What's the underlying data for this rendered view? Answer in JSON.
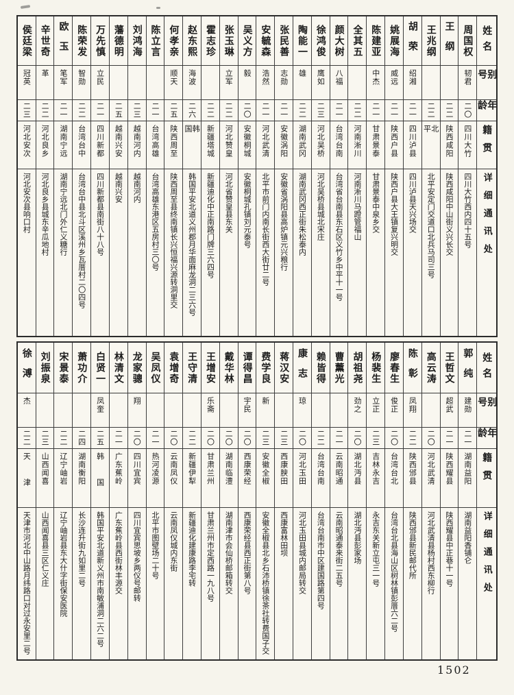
{
  "page_number": "1502",
  "headers": {
    "name": "姓名",
    "alias": "别号",
    "age": "年龄",
    "origin": "籍贯",
    "address": "详细通讯处"
  },
  "tables": [
    {
      "entries": [
        {
          "name": "周国权",
          "alias": "韧君",
          "age": "二〇",
          "origin": "四川大竹",
          "address": "四川大竹西内四十五号"
        },
        {
          "name": "王纲",
          "alias": "",
          "age": "二二",
          "origin": "陕西咸阳",
          "address": "陕西咸阳中山街义兴长交"
        },
        {
          "name": "王兆纲",
          "alias": "",
          "age": "二二",
          "origin": "北平",
          "address": "北平安定门交道口北兵马司三号"
        },
        {
          "name": "胡荣",
          "alias": "绍湘",
          "age": "二一",
          "origin": "四川泸县",
          "address": "四川泸县天兴场交"
        },
        {
          "name": "姚展海",
          "alias": "威远",
          "age": "二一",
          "origin": "陕西户县",
          "address": "陕西户县大王镇复兴明交"
        },
        {
          "name": "陈建亚",
          "alias": "中杰",
          "age": "二一",
          "origin": "甘肃景泰",
          "address": "甘肃景泰中泉乡交"
        },
        {
          "name": "全其五",
          "alias": "",
          "age": "二二",
          "origin": "河南淅川",
          "address": "河南淅川马蹬管福山"
        },
        {
          "name": "颜大树",
          "alias": "八福",
          "age": "二一",
          "origin": "台湾台南",
          "address": "台湾省台南县东石区义竹乡中平十一号"
        },
        {
          "name": "徐鸿俊",
          "alias": "鹰如",
          "age": "二三",
          "origin": "河北吴桥",
          "address": "河北吴桥县城北宋庄"
        },
        {
          "name": "陶能一",
          "alias": "雄",
          "age": "二二",
          "origin": "湖南武冈",
          "address": "湖南武冈西正街朱松泰内"
        },
        {
          "name": "张民善",
          "alias": "志勋",
          "age": "二一",
          "origin": "安徽涡阳",
          "address": "安徽省涡阳县高炉镇元兴粮行"
        },
        {
          "name": "安毓森",
          "alias": "浩然",
          "age": "二一",
          "origin": "河北武清",
          "address": "北平市前门内南长街西大街廿二号"
        },
        {
          "name": "吴义方",
          "alias": "毅",
          "age": "二〇",
          "origin": "安徽桐城",
          "address": "安徽桐城孔镇刘元泰号"
        },
        {
          "name": "张玉琳",
          "alias": "立军",
          "age": "二二",
          "origin": "河北赞皇",
          "address": "河北省赞皇县东关"
        },
        {
          "name": "霍志珍",
          "alias": "",
          "age": "二二",
          "origin": "新疆塔城",
          "address": "新疆迪化中正南路门牌三六四号"
        },
        {
          "name": "赵东熙",
          "alias": "海波",
          "age": "二六",
          "origin": "韩国",
          "address": "韩国平安北道义州郡月华面麻龙洞二三六号"
        },
        {
          "name": "何孝亲",
          "alias": "顺天",
          "age": "二五",
          "origin": "陕西周至",
          "address": "陕西周至县终南镇长兴恒福兴源转洞里交"
        },
        {
          "name": "陈立言",
          "alias": "",
          "age": "二一",
          "origin": "台湾高雄",
          "address": "台湾高雄东港区五房村三〇号"
        },
        {
          "name": "刘鸿海",
          "alias": "",
          "age": "二三",
          "origin": "越南河内",
          "address": "越南河内"
        },
        {
          "name": "藩德明",
          "alias": "",
          "age": "二五",
          "origin": "越南兴安",
          "address": "越南兴安"
        },
        {
          "name": "万先慎",
          "alias": "立民",
          "age": "二一",
          "origin": "四川新都",
          "address": "四川新都县南街八十八号"
        },
        {
          "name": "陈荣发",
          "alias": "智勋",
          "age": "二二",
          "origin": "台湾台中",
          "address": "台湾台中县北斗区溪州乡瓦厝村二〇四号"
        },
        {
          "name": "欧玉",
          "alias": "笔军",
          "age": "二一",
          "origin": "湖南宁远",
          "address": "湖南宁远北门外仁义糖行"
        },
        {
          "name": "辛世奇",
          "alias": "革",
          "age": "二二",
          "origin": "河北良乡",
          "address": "河北良乡县城东辛瓜地村"
        },
        {
          "name": "侯廷梁",
          "alias": "冠英",
          "age": "二三",
          "origin": "河北安次",
          "address": "河北安次县响口村"
        }
      ]
    },
    {
      "entries": [
        {
          "name": "郭纯",
          "alias": "建勋",
          "age": "二一",
          "origin": "湖南益阳",
          "address": "湖南益阳香铺仑"
        },
        {
          "name": "王哲文",
          "alias": "超武",
          "age": "二一",
          "origin": "陕西耀县",
          "address": "陕西耀县中正巷十一号"
        },
        {
          "name": "高云涛",
          "alias": "",
          "age": "二〇",
          "origin": "河北武清",
          "address": "河北武清县杨村西东柳行"
        },
        {
          "name": "陈彰",
          "alias": "凤翔",
          "age": "二二",
          "origin": "陕西邠县",
          "address": "陕西邠县新民邮代所"
        },
        {
          "name": "廖春生",
          "alias": "俊正",
          "age": "二〇",
          "origin": "台湾台北",
          "address": "台湾台北县海山区树林镇彭厝六二号"
        },
        {
          "name": "杨裴生",
          "alias": "立正",
          "age": "二三",
          "origin": "吉林永吉",
          "address": "永吉东关新立屯三一号"
        },
        {
          "name": "胡祖尧",
          "alias": "劲之",
          "age": "二〇",
          "origin": "湖北沔县",
          "address": "湖北沔县彭家场"
        },
        {
          "name": "曹薰光",
          "alias": "",
          "age": "二一",
          "origin": "云南昭通",
          "address": "云南昭通泰来街二五号"
        },
        {
          "name": "赖皆得",
          "alias": "",
          "age": "二二",
          "origin": "台湾台南",
          "address": "台湾台南市中区建国路第四号"
        },
        {
          "name": "康志",
          "alias": "琼",
          "age": "二〇",
          "origin": "河北玉田",
          "address": "河北玉田县城内邮局转交"
        },
        {
          "name": "蒋汉安",
          "alias": "",
          "age": "二三",
          "origin": "西康腴田",
          "address": "西康富林田坝"
        },
        {
          "name": "费学良",
          "alias": "新",
          "age": "二三",
          "origin": "安徽全椒",
          "address": "安徽全椒县北乡石沛桥镇徐茶社转费国子交"
        },
        {
          "name": "谭得昌",
          "alias": "宇民",
          "age": "二〇",
          "origin": "西康荣经",
          "address": "西康荣经县西正街第八号"
        },
        {
          "name": "戴华林",
          "alias": "",
          "age": "二〇",
          "origin": "湖南临澧",
          "address": "湖南津市会仙桥邮箱转交"
        },
        {
          "name": "王增安",
          "alias": "乐斋",
          "age": "二〇",
          "origin": "甘肃兰州",
          "address": "甘肃兰州市定西路一九八号"
        },
        {
          "name": "王守清",
          "alias": "",
          "age": "二二",
          "origin": "新疆伊犁",
          "address": "新疆迪化建康路李宅转"
        },
        {
          "name": "袁增奇",
          "alias": "",
          "age": "二〇",
          "origin": "云南凤仪",
          "address": "云南凤仪城内东街"
        },
        {
          "name": "吴凤仪",
          "alias": "",
          "age": "二一",
          "origin": "热河凌源",
          "address": "北平市图壁场二十号"
        },
        {
          "name": "龙家骢",
          "alias": "翔",
          "age": "二〇",
          "origin": "四川宜宾",
          "address": "四川宜宾思坡乡两仪号邮转"
        },
        {
          "name": "林清文",
          "alias": "",
          "age": "二一",
          "origin": "广东蕉岭",
          "address": "广东蕉岭县西街林丰源交"
        },
        {
          "name": "白贤一",
          "alias": "凤奎",
          "age": "二五",
          "origin": "韩国",
          "address": "韩国平安北道新义州市南敏浦洞二六二号"
        },
        {
          "name": "萧功介",
          "alias": "",
          "age": "二四",
          "origin": "湖南衡阳",
          "address": "长沙连升街九如里二号"
        },
        {
          "name": "宋景泰",
          "alias": "",
          "age": "二二",
          "origin": "辽宁岫岩",
          "address": "辽宁岫岩县东大什字街保安医院"
        },
        {
          "name": "刘振泉",
          "alias": "",
          "age": "二三",
          "origin": "山西闻喜",
          "address": "山西闻喜县三区仁义庄"
        },
        {
          "name": "徐溥",
          "alias": "杰",
          "age": "二二",
          "origin": "天津",
          "address": "天津市河北中山路月纬路口对过永安里二号"
        }
      ]
    }
  ]
}
